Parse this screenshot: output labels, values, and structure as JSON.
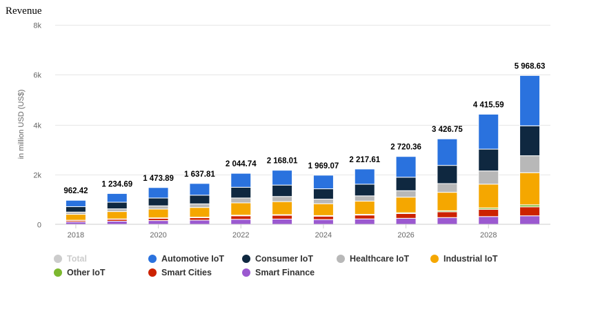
{
  "page_title": "Revenue",
  "chart_data": {
    "type": "bar",
    "stacked": true,
    "title": "Revenue",
    "xlabel": "",
    "ylabel": "in million USD (US$)",
    "ylim": [
      0,
      8000
    ],
    "yticks": [
      0,
      2000,
      4000,
      6000,
      8000
    ],
    "ytick_labels": [
      "0",
      "2k",
      "4k",
      "6k",
      "8k"
    ],
    "xticks_shown": [
      "2018",
      "2020",
      "2022",
      "2024",
      "2026",
      "2028"
    ],
    "categories": [
      "2018",
      "2019",
      "2020",
      "2021",
      "2022",
      "2023",
      "2024",
      "2025",
      "2026",
      "2027",
      "2028",
      "2029"
    ],
    "totals": [
      962.42,
      1234.69,
      1473.89,
      1637.81,
      2044.74,
      2168.01,
      1969.07,
      2217.61,
      2720.36,
      3426.75,
      4415.59,
      5968.63
    ],
    "total_labels": [
      "962.42",
      "1 234.69",
      "1 473.89",
      "1 637.81",
      "2 044.74",
      "2 168.01",
      "1 969.07",
      "2 217.61",
      "2 720.36",
      "3 426.75",
      "4 415.59",
      "5 968.63"
    ],
    "series": [
      {
        "name": "Smart Finance",
        "color": "#9b59d0",
        "values": [
          95,
          125,
          150,
          165,
          200,
          210,
          190,
          215,
          240,
          270,
          310,
          340
        ]
      },
      {
        "name": "Smart Cities",
        "color": "#cc2200",
        "values": [
          55,
          75,
          90,
          100,
          140,
          150,
          135,
          155,
          190,
          230,
          290,
          360
        ]
      },
      {
        "name": "Other IoT",
        "color": "#7cb82f",
        "values": [
          12,
          15,
          18,
          20,
          25,
          27,
          25,
          28,
          35,
          45,
          58,
          80
        ]
      },
      {
        "name": "Industrial IoT",
        "color": "#f5a700",
        "values": [
          238,
          295,
          352,
          390,
          495,
          523,
          475,
          532,
          623,
          738,
          952,
          1290
        ]
      },
      {
        "name": "Healthcare IoT",
        "color": "#b8b8b8",
        "values": [
          90,
          110,
          130,
          145,
          195,
          205,
          185,
          210,
          260,
          350,
          530,
          680
        ]
      },
      {
        "name": "Consumer IoT",
        "color": "#0f2840",
        "values": [
          217,
          265,
          314,
          348,
          430,
          458,
          414,
          468,
          540,
          730,
          875,
          1200
        ]
      },
      {
        "name": "Automotive IoT",
        "color": "#2a72de",
        "values": [
          255.42,
          349.69,
          419.89,
          469.81,
          559.74,
          595.01,
          545.07,
          609.61,
          832.36,
          1063.75,
          1400.59,
          2018.63
        ]
      }
    ],
    "legend": {
      "position": "bottom-left",
      "items": [
        {
          "name": "Total",
          "color": "#cccccc",
          "hidden": true
        },
        {
          "name": "Automotive IoT",
          "color": "#2a72de",
          "hidden": false
        },
        {
          "name": "Consumer IoT",
          "color": "#0f2840",
          "hidden": false
        },
        {
          "name": "Healthcare IoT",
          "color": "#b8b8b8",
          "hidden": false
        },
        {
          "name": "Industrial IoT",
          "color": "#f5a700",
          "hidden": false
        },
        {
          "name": "Other IoT",
          "color": "#7cb82f",
          "hidden": false
        },
        {
          "name": "Smart Cities",
          "color": "#cc2200",
          "hidden": false
        },
        {
          "name": "Smart Finance",
          "color": "#9b59d0",
          "hidden": false
        }
      ]
    },
    "grid": true
  }
}
